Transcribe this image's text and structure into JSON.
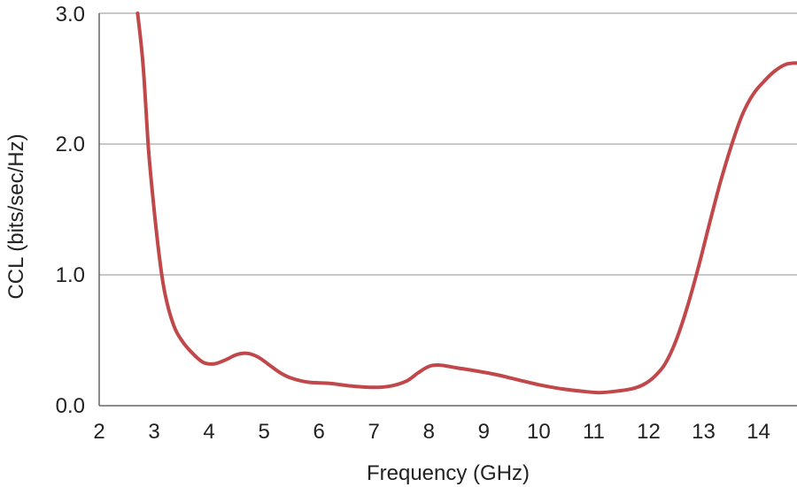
{
  "chart_data": {
    "type": "line",
    "xlabel": "Frequency (GHz)",
    "ylabel": "CCL (bits/sec/Hz)",
    "xlim": [
      2,
      14.7
    ],
    "ylim": [
      0,
      3
    ],
    "xticks": [
      "2",
      "3",
      "4",
      "5",
      "6",
      "7",
      "8",
      "9",
      "10",
      "11",
      "12",
      "13",
      "14"
    ],
    "yticks": [
      "0.0",
      "1.0",
      "2.0",
      "3.0"
    ],
    "grid": "horizontal",
    "line_color": "#c0474a",
    "series": [
      {
        "x": [
          2.7,
          2.8,
          2.9,
          3.0,
          3.1,
          3.2,
          3.35,
          3.5,
          3.7,
          3.9,
          4.1,
          4.3,
          4.5,
          4.7,
          4.9,
          5.1,
          5.3,
          5.5,
          5.8,
          6.2,
          6.6,
          7.0,
          7.3,
          7.6,
          7.8,
          8.0,
          8.2,
          8.5,
          8.8,
          9.2,
          9.6,
          10.0,
          10.4,
          10.8,
          11.1,
          11.4,
          11.7,
          11.9,
          12.1,
          12.3,
          12.5,
          12.7,
          12.9,
          13.1,
          13.3,
          13.5,
          13.7,
          13.9,
          14.1,
          14.3,
          14.5,
          14.7
        ],
        "y": [
          3.0,
          2.6,
          1.95,
          1.5,
          1.12,
          0.85,
          0.62,
          0.5,
          0.4,
          0.33,
          0.32,
          0.35,
          0.39,
          0.4,
          0.37,
          0.31,
          0.25,
          0.21,
          0.18,
          0.17,
          0.15,
          0.14,
          0.15,
          0.19,
          0.25,
          0.3,
          0.31,
          0.29,
          0.27,
          0.24,
          0.2,
          0.16,
          0.13,
          0.11,
          0.1,
          0.11,
          0.13,
          0.16,
          0.22,
          0.32,
          0.5,
          0.75,
          1.05,
          1.38,
          1.7,
          1.98,
          2.22,
          2.38,
          2.48,
          2.56,
          2.61,
          2.62
        ]
      }
    ]
  }
}
